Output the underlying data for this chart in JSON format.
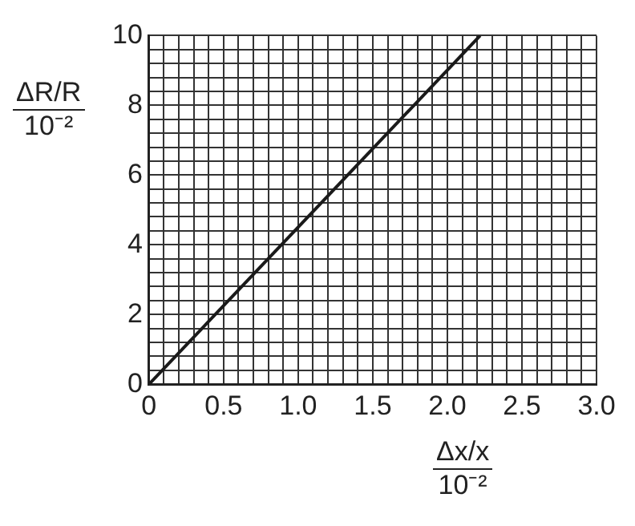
{
  "chart_data": {
    "type": "line",
    "xlabel": "Δx/x\n10⁻²",
    "ylabel": "ΔR/R\n10⁻²",
    "x": [
      0,
      2.22
    ],
    "series": [
      {
        "color": "#1a1a1a",
        "values": [
          0,
          10
        ]
      }
    ],
    "xlim": [
      0,
      3
    ],
    "ylim": [
      0,
      10
    ],
    "xticks": [
      {
        "value": 0,
        "label": "0"
      },
      {
        "value": 0.1,
        "label": null
      },
      {
        "value": 0.2,
        "label": null
      },
      {
        "value": 0.3,
        "label": null
      },
      {
        "value": 0.4,
        "label": null
      },
      {
        "value": 0.5,
        "label": "0.5"
      },
      {
        "value": 0.6,
        "label": null
      },
      {
        "value": 0.7,
        "label": null
      },
      {
        "value": 0.8,
        "label": null
      },
      {
        "value": 0.9,
        "label": null
      },
      {
        "value": 1,
        "label": "1.0"
      },
      {
        "value": 1.1,
        "label": null
      },
      {
        "value": 1.2,
        "label": null
      },
      {
        "value": 1.3,
        "label": null
      },
      {
        "value": 1.4,
        "label": null
      },
      {
        "value": 1.5,
        "label": "1.5"
      },
      {
        "value": 1.6,
        "label": null
      },
      {
        "value": 1.7,
        "label": null
      },
      {
        "value": 1.8,
        "label": null
      },
      {
        "value": 1.9,
        "label": null
      },
      {
        "value": 2,
        "label": "2.0"
      },
      {
        "value": 2.1,
        "label": null
      },
      {
        "value": 2.2,
        "label": null
      },
      {
        "value": 2.3,
        "label": null
      },
      {
        "value": 2.4,
        "label": null
      },
      {
        "value": 2.5,
        "label": "2.5"
      },
      {
        "value": 2.6,
        "label": null
      },
      {
        "value": 2.7,
        "label": null
      },
      {
        "value": 2.8,
        "label": null
      },
      {
        "value": 2.9,
        "label": null
      },
      {
        "value": 3,
        "label": "3.0"
      }
    ],
    "yticks": [
      {
        "value": 0,
        "label": "0"
      },
      {
        "value": 0.4,
        "label": null
      },
      {
        "value": 0.8,
        "label": null
      },
      {
        "value": 1.2,
        "label": null
      },
      {
        "value": 1.6,
        "label": null
      },
      {
        "value": 2,
        "label": "2"
      },
      {
        "value": 2.4,
        "label": null
      },
      {
        "value": 2.8,
        "label": null
      },
      {
        "value": 3.2,
        "label": null
      },
      {
        "value": 3.6,
        "label": null
      },
      {
        "value": 4,
        "label": "4"
      },
      {
        "value": 4.4,
        "label": null
      },
      {
        "value": 4.8,
        "label": null
      },
      {
        "value": 5.2,
        "label": null
      },
      {
        "value": 5.6,
        "label": null
      },
      {
        "value": 6,
        "label": "6"
      },
      {
        "value": 6.4,
        "label": null
      },
      {
        "value": 6.8,
        "label": null
      },
      {
        "value": 7.2,
        "label": null
      },
      {
        "value": 7.6,
        "label": null
      },
      {
        "value": 8,
        "label": "8"
      },
      {
        "value": 8.4,
        "label": null
      },
      {
        "value": 8.8,
        "label": null
      },
      {
        "value": 9.2,
        "label": null
      },
      {
        "value": 9.6,
        "label": null
      },
      {
        "value": 10,
        "label": "10"
      }
    ],
    "grid": true,
    "legend": false,
    "marker": "none",
    "line_style": "solid"
  }
}
